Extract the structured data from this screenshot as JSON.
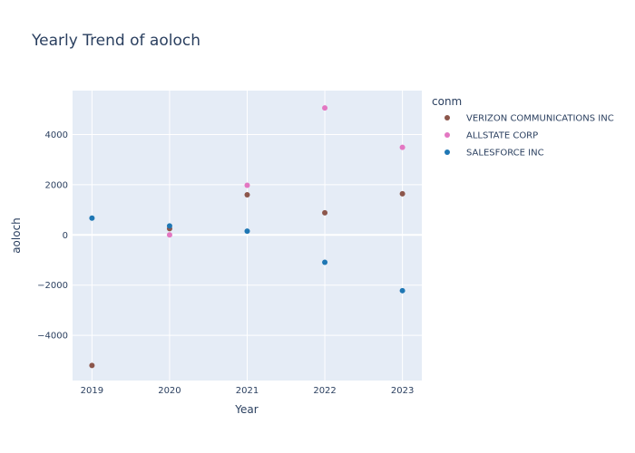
{
  "chart_data": {
    "type": "scatter",
    "title": "Yearly Trend of aoloch",
    "xlabel": "Year",
    "ylabel": "aoloch",
    "x_ticks": [
      2019,
      2020,
      2021,
      2022,
      2023
    ],
    "y_ticks": [
      -4000,
      -2000,
      0,
      2000,
      4000
    ],
    "xlim": [
      2018.75,
      2023.25
    ],
    "ylim": [
      -5800,
      5750
    ],
    "grid": true,
    "legend_title": "conm",
    "legend_position": "right",
    "series": [
      {
        "name": "VERIZON COMMUNICATIONS INC",
        "color": "#8c564b",
        "points": [
          {
            "x": 2019,
            "y": -5200
          },
          {
            "x": 2020,
            "y": 250
          },
          {
            "x": 2021,
            "y": 1600
          },
          {
            "x": 2022,
            "y": 880
          },
          {
            "x": 2023,
            "y": 1640
          }
        ]
      },
      {
        "name": "ALLSTATE CORP",
        "color": "#e377c2",
        "points": [
          {
            "x": 2020,
            "y": 0
          },
          {
            "x": 2021,
            "y": 1980
          },
          {
            "x": 2022,
            "y": 5060
          },
          {
            "x": 2023,
            "y": 3490
          }
        ]
      },
      {
        "name": "SALESFORCE INC",
        "color": "#1f77b4",
        "points": [
          {
            "x": 2019,
            "y": 670
          },
          {
            "x": 2020,
            "y": 360
          },
          {
            "x": 2021,
            "y": 150
          },
          {
            "x": 2022,
            "y": -1090
          },
          {
            "x": 2023,
            "y": -2220
          }
        ]
      }
    ]
  }
}
